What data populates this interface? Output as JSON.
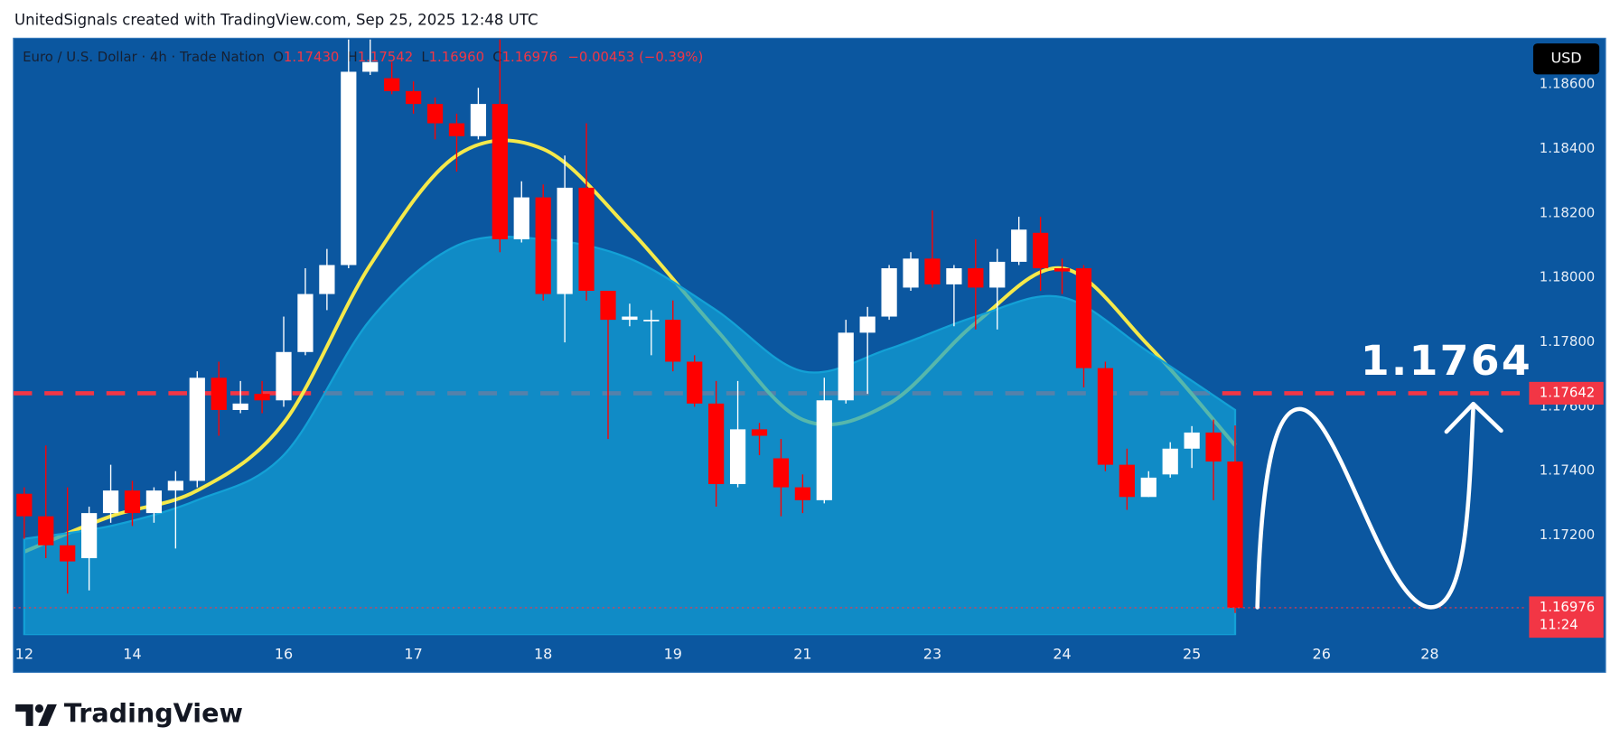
{
  "header": {
    "caption": "UnitedSignals created with TradingView.com, Sep 25, 2025 12:48 UTC",
    "symbol": "Euro / U.S. Dollar · 4h · Trade Nation",
    "ohlc": [
      {
        "key": "O",
        "value": "1.17430"
      },
      {
        "key": "H",
        "value": "1.17542"
      },
      {
        "key": "L",
        "value": "1.16960"
      },
      {
        "key": "C",
        "value": "1.16976"
      }
    ],
    "change": "−0.00453 (−0.39%)",
    "currency": "USD",
    "brand": "TradingView"
  },
  "chart_data": {
    "type": "candlestick",
    "categories": [
      "12",
      null,
      null,
      null,
      null,
      "14",
      null,
      null,
      null,
      null,
      null,
      null,
      "16",
      null,
      null,
      null,
      null,
      null,
      "17",
      null,
      null,
      null,
      null,
      null,
      "18",
      null,
      null,
      null,
      null,
      null,
      "19",
      null,
      null,
      null,
      null,
      null,
      "21",
      null,
      null,
      null,
      null,
      null,
      "23",
      null,
      null,
      null,
      null,
      null,
      "24",
      null,
      null,
      null,
      null,
      null,
      "25",
      null,
      null,
      null,
      null,
      null,
      "26",
      null,
      null,
      null,
      null,
      "28",
      null,
      null,
      null,
      null
    ],
    "open": [
      1.1733,
      1.1726,
      1.1717,
      1.1713,
      1.1727,
      1.1734,
      1.1727,
      1.1734,
      1.1737,
      1.1769,
      1.1759,
      1.1764,
      1.1762,
      1.1777,
      1.1795,
      1.1804,
      1.1864,
      1.1862,
      1.1858,
      1.1854,
      1.1848,
      1.1844,
      1.1854,
      1.1812,
      1.1825,
      1.1795,
      1.1828,
      1.1796,
      1.1787,
      1.1787,
      1.1787,
      1.1774,
      1.1761,
      1.1736,
      1.1753,
      1.1744,
      1.1735,
      1.1731,
      1.1762,
      1.1783,
      1.1788,
      1.1797,
      1.1806,
      1.1798,
      1.1803,
      1.1797,
      1.1805,
      1.1814,
      1.1803,
      1.1803,
      1.1772,
      1.1742,
      1.1732,
      1.1739,
      1.1747,
      1.1752,
      1.1743,
      null,
      null,
      null,
      null,
      null,
      null,
      null,
      null,
      null,
      null,
      null,
      null,
      null
    ],
    "high": [
      1.1735,
      1.1748,
      1.1735,
      1.1729,
      1.1742,
      1.1737,
      1.1735,
      1.174,
      1.1771,
      1.1774,
      1.1768,
      1.1768,
      1.1788,
      1.1803,
      1.1809,
      1.1874,
      1.1874,
      1.1867,
      1.1861,
      1.1856,
      1.1851,
      1.1859,
      1.1874,
      1.183,
      1.1829,
      1.1838,
      1.1848,
      1.1796,
      1.1792,
      1.179,
      1.1793,
      1.1776,
      1.1768,
      1.1768,
      1.1755,
      1.175,
      1.1739,
      1.1769,
      1.1787,
      1.1791,
      1.1804,
      1.1808,
      1.1821,
      1.1804,
      1.1812,
      1.1809,
      1.1819,
      1.1819,
      1.1806,
      1.1804,
      1.1774,
      1.1747,
      1.174,
      1.1749,
      1.1754,
      1.1756,
      1.17542,
      null,
      null,
      null,
      null,
      null,
      null,
      null,
      null,
      null,
      null,
      null,
      null,
      null
    ],
    "low": [
      1.1719,
      1.1713,
      1.1702,
      1.1703,
      1.1724,
      1.1723,
      1.1724,
      1.1716,
      1.1735,
      1.1751,
      1.1758,
      1.1758,
      1.176,
      1.1776,
      1.179,
      1.1803,
      1.1863,
      1.1857,
      1.1851,
      1.1843,
      1.1833,
      1.1843,
      1.1808,
      1.1811,
      1.1793,
      1.178,
      1.1793,
      1.175,
      1.1785,
      1.1776,
      1.1771,
      1.176,
      1.1729,
      1.1735,
      1.1745,
      1.1726,
      1.1727,
      1.173,
      1.1761,
      1.1764,
      1.1787,
      1.1796,
      1.1797,
      1.1785,
      1.1784,
      1.1784,
      1.1804,
      1.1796,
      1.1795,
      1.1766,
      1.174,
      1.1728,
      1.1732,
      1.1738,
      1.1741,
      1.1731,
      1.1696,
      null,
      null,
      null,
      null,
      null,
      null,
      null,
      null,
      null,
      null,
      null,
      null,
      null
    ],
    "close": [
      1.1726,
      1.1717,
      1.1712,
      1.1727,
      1.1734,
      1.1727,
      1.1734,
      1.1737,
      1.1769,
      1.1759,
      1.1761,
      1.1762,
      1.1777,
      1.1795,
      1.1804,
      1.1864,
      1.1867,
      1.1858,
      1.1854,
      1.1848,
      1.1844,
      1.1854,
      1.1812,
      1.1825,
      1.1795,
      1.1828,
      1.1796,
      1.1787,
      1.1788,
      1.1787,
      1.1774,
      1.1761,
      1.1736,
      1.1753,
      1.1751,
      1.1735,
      1.1731,
      1.1762,
      1.1783,
      1.1788,
      1.1803,
      1.1806,
      1.1798,
      1.1803,
      1.1797,
      1.1805,
      1.1815,
      1.1803,
      1.1802,
      1.1772,
      1.1742,
      1.1732,
      1.1738,
      1.1747,
      1.1752,
      1.1743,
      1.16976,
      null,
      null,
      null,
      null,
      null,
      null,
      null,
      null,
      null,
      null,
      null,
      null,
      null
    ],
    "up_color": "#ffffff",
    "down_color": "#ff0000",
    "overlays": [
      {
        "type": "line",
        "color": "#f5e94a",
        "x": [
          0,
          4,
          8,
          12,
          16,
          20,
          24,
          28,
          32,
          36,
          40,
          44,
          48,
          52,
          56
        ],
        "values": [
          1.1715,
          1.1726,
          1.1734,
          1.1755,
          1.1804,
          1.1838,
          1.184,
          1.1815,
          1.1784,
          1.1756,
          1.1761,
          1.1786,
          1.1803,
          1.1779,
          1.1748
        ]
      },
      {
        "type": "area",
        "color": "#13a1d6",
        "opacity": 0.7,
        "x": [
          0,
          4,
          8,
          12,
          16,
          20,
          24,
          28,
          32,
          36,
          40,
          44,
          48,
          52,
          56
        ],
        "values": [
          1.1719,
          1.1723,
          1.1731,
          1.1745,
          1.1787,
          1.181,
          1.1812,
          1.1806,
          1.179,
          1.1771,
          1.1778,
          1.1788,
          1.1794,
          1.1777,
          1.1759
        ]
      }
    ],
    "ylim": [
      1.16891,
      1.18744
    ],
    "yticks": [
      {
        "value": 1.172,
        "label": "1.17200"
      },
      {
        "value": 1.174,
        "label": "1.17400"
      },
      {
        "value": 1.176,
        "label": "1.17600"
      },
      {
        "value": 1.178,
        "label": "1.17800"
      },
      {
        "value": 1.18,
        "label": "1.18000"
      },
      {
        "value": 1.182,
        "label": "1.18200"
      },
      {
        "value": 1.184,
        "label": "1.18400"
      },
      {
        "value": 1.186,
        "label": "1.18600"
      }
    ],
    "grid": false,
    "level": {
      "value": 1.17642,
      "label": "1.17642",
      "color": "#f23645"
    },
    "annotation": "1.1764",
    "last_price": {
      "value": 1.16976,
      "label": "1.16976",
      "countdown": "11:24",
      "color": "#f23645"
    }
  }
}
